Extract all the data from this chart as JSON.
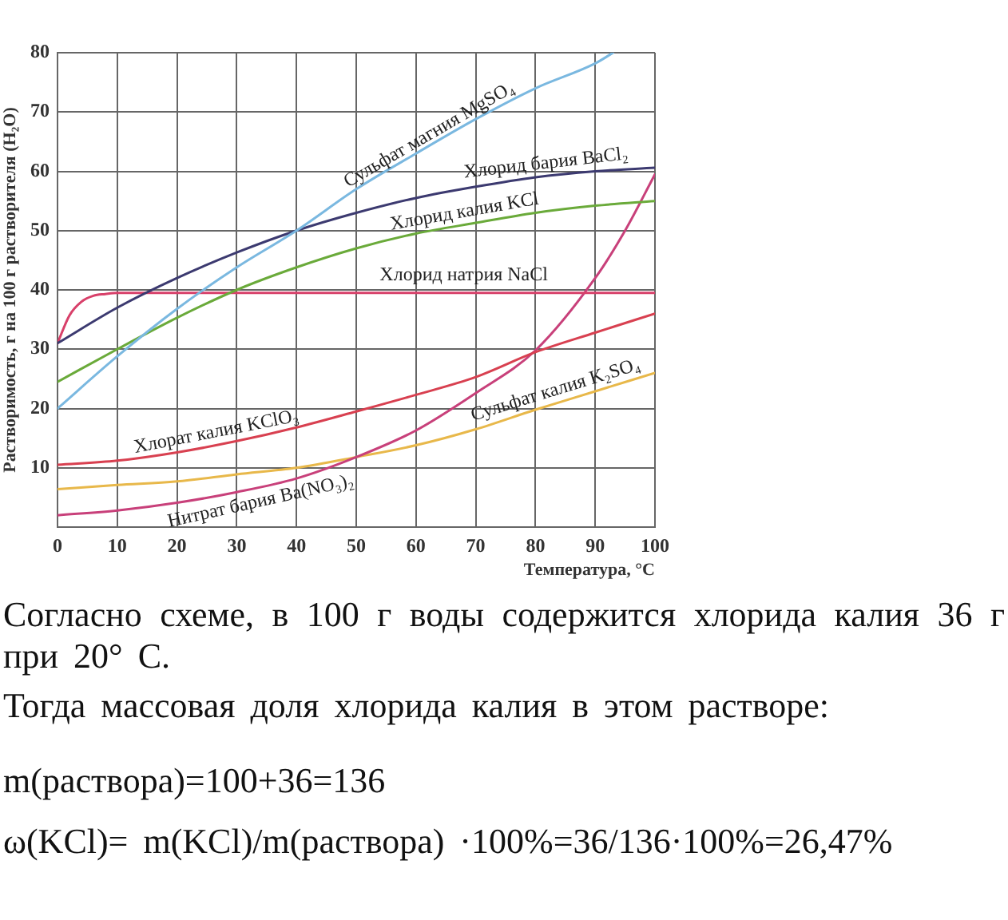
{
  "chart_data": {
    "type": "line",
    "xlabel": "Температура, °C",
    "ylabel": "Растворимость, г на 100 г растворителя (H₂O)",
    "xlim": [
      0,
      100
    ],
    "xticks": [
      0,
      10,
      20,
      30,
      40,
      50,
      60,
      70,
      80,
      90,
      100
    ],
    "ylim": [
      0,
      80
    ],
    "yticks": [
      {
        "value": 0,
        "label": null
      },
      10,
      20,
      30,
      40,
      50,
      60,
      70,
      80
    ],
    "grid": true,
    "marker": "none",
    "line_style": "solid",
    "series": [
      {
        "name": "Сульфат магния MgSO₄",
        "color": "#7ab8e0",
        "x": [
          0,
          10,
          20,
          30,
          40,
          50,
          60,
          70,
          80,
          90,
          93
        ],
        "values": [
          20,
          28.8,
          36.8,
          43.8,
          50,
          57,
          63,
          68.8,
          74,
          78.2,
          80
        ]
      },
      {
        "name": "Хлорид бария BaCl₂",
        "color": "#3c3a70",
        "x": [
          0,
          10,
          20,
          30,
          40,
          50,
          60,
          70,
          80,
          90,
          100
        ],
        "values": [
          31,
          37,
          42,
          46.3,
          50,
          53,
          55.5,
          57.4,
          59,
          60,
          60.6
        ]
      },
      {
        "name": "Хлорид калия KCl",
        "color": "#6aaa3a",
        "x": [
          0,
          10,
          20,
          30,
          40,
          50,
          60,
          70,
          80,
          90,
          100
        ],
        "values": [
          24.5,
          30,
          35.3,
          40,
          43.8,
          47,
          49.5,
          51.3,
          53,
          54.2,
          55
        ]
      },
      {
        "name": "Хлорид натрия NaCl",
        "color": "#d8406a",
        "x": [
          0,
          2,
          4,
          6,
          8,
          10,
          100
        ],
        "values": [
          31,
          35.7,
          38,
          39,
          39.3,
          39.5,
          39.5
        ]
      },
      {
        "name": "Хлорат калия KClO₃",
        "color": "#d84050",
        "x": [
          0,
          10,
          20,
          30,
          40,
          50,
          60,
          70,
          80,
          90,
          100
        ],
        "values": [
          10.5,
          11.2,
          12.6,
          14.5,
          16.8,
          19.5,
          22.3,
          25.3,
          29.5,
          32.8,
          36
        ]
      },
      {
        "name": "Нитрат бария Ba(NO₃)₂",
        "color": "#c8407a",
        "x": [
          0,
          10,
          20,
          30,
          40,
          50,
          60,
          70,
          80,
          90,
          95,
          100
        ],
        "values": [
          2,
          2.8,
          4.1,
          5.9,
          8.2,
          11.8,
          16.3,
          22.6,
          29.8,
          42,
          50,
          59.5
        ]
      },
      {
        "name": "Сульфат калия K₂SO₄",
        "color": "#e8b84a",
        "x": [
          0,
          10,
          20,
          30,
          40,
          50,
          60,
          70,
          80,
          90,
          100
        ],
        "values": [
          6.4,
          7.1,
          7.7,
          8.9,
          10,
          11.8,
          13.8,
          16.5,
          19.8,
          22.9,
          26
        ]
      }
    ],
    "annotations": [
      "Согласно схеме, в 100 г воды содержится хлорида калия 36 г при 20° С.",
      "Тогда массовая доля хлорида калия в этом растворе:",
      "m(раствора)=100+36=136",
      "ω(KCl)= m(KCl)/m(раствора) ·100%=36/136·100%=26,47%"
    ]
  }
}
